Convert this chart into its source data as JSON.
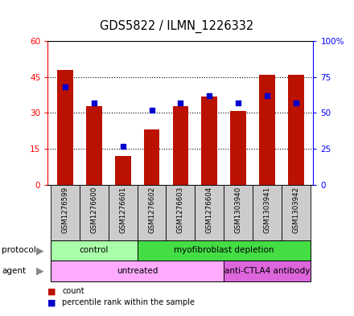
{
  "title": "GDS5822 / ILMN_1226332",
  "samples": [
    "GSM1276599",
    "GSM1276600",
    "GSM1276601",
    "GSM1276602",
    "GSM1276603",
    "GSM1276604",
    "GSM1303940",
    "GSM1303941",
    "GSM1303942"
  ],
  "counts": [
    48,
    33,
    12,
    23,
    33,
    37,
    31,
    46,
    46
  ],
  "percentiles": [
    68,
    57,
    27,
    52,
    57,
    62,
    57,
    62,
    57
  ],
  "left_ylim": [
    0,
    60
  ],
  "right_ylim": [
    0,
    100
  ],
  "left_yticks": [
    0,
    15,
    30,
    45,
    60
  ],
  "right_yticks": [
    0,
    25,
    50,
    75,
    100
  ],
  "right_yticklabels": [
    "0",
    "25",
    "50",
    "75",
    "100%"
  ],
  "protocol_groups": [
    {
      "label": "control",
      "start": 0,
      "end": 3,
      "color": "#aaffaa"
    },
    {
      "label": "myofibroblast depletion",
      "start": 3,
      "end": 9,
      "color": "#44dd44"
    }
  ],
  "agent_groups": [
    {
      "label": "untreated",
      "start": 0,
      "end": 6,
      "color": "#ffaaff"
    },
    {
      "label": "anti-CTLA4 antibody",
      "start": 6,
      "end": 9,
      "color": "#dd66dd"
    }
  ],
  "bar_color": "#BB1100",
  "dot_color": "#0000CC",
  "background_color": "#FFFFFF",
  "plot_bg_color": "#FFFFFF",
  "grid_color": "#000000",
  "label_fontsize": 7.5,
  "title_fontsize": 10.5
}
